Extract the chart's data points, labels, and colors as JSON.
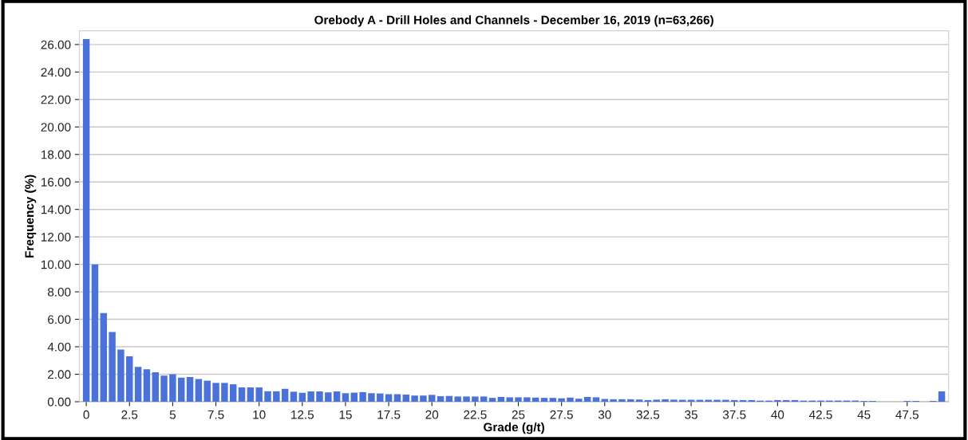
{
  "chart_data": {
    "type": "bar",
    "title": "Orebody A - Drill Holes and Channels - December 16, 2019 (n=63,266)",
    "xlabel": "Grade (g/t)",
    "ylabel": "Frequency (%)",
    "categories": [
      "0",
      null,
      null,
      null,
      null,
      "2.5",
      null,
      null,
      null,
      null,
      "5",
      null,
      null,
      null,
      null,
      "7.5",
      null,
      null,
      null,
      null,
      "10",
      null,
      null,
      null,
      null,
      "12.5",
      null,
      null,
      null,
      null,
      "15",
      null,
      null,
      null,
      null,
      "17.5",
      null,
      null,
      null,
      null,
      "20",
      null,
      null,
      null,
      null,
      "22.5",
      null,
      null,
      null,
      null,
      "25",
      null,
      null,
      null,
      null,
      "27.5",
      null,
      null,
      null,
      null,
      "30",
      null,
      null,
      null,
      null,
      "32.5",
      null,
      null,
      null,
      null,
      "35",
      null,
      null,
      null,
      null,
      "37.5",
      null,
      null,
      null,
      null,
      "40",
      null,
      null,
      null,
      null,
      "42.5",
      null,
      null,
      null,
      null,
      "45",
      null,
      null,
      null,
      null,
      "47.5",
      null,
      null,
      null,
      null
    ],
    "values": [
      26.4,
      10.0,
      6.45,
      5.08,
      3.8,
      3.31,
      2.53,
      2.37,
      2.14,
      1.9,
      2.0,
      1.75,
      1.8,
      1.65,
      1.53,
      1.37,
      1.37,
      1.27,
      1.04,
      1.04,
      1.04,
      0.76,
      0.76,
      0.94,
      0.73,
      0.65,
      0.75,
      0.75,
      0.68,
      0.75,
      0.62,
      0.66,
      0.7,
      0.62,
      0.6,
      0.55,
      0.55,
      0.52,
      0.45,
      0.45,
      0.5,
      0.4,
      0.42,
      0.38,
      0.38,
      0.38,
      0.38,
      0.28,
      0.35,
      0.32,
      0.32,
      0.32,
      0.3,
      0.28,
      0.28,
      0.25,
      0.3,
      0.22,
      0.35,
      0.32,
      0.2,
      0.18,
      0.18,
      0.18,
      0.16,
      0.12,
      0.15,
      0.18,
      0.15,
      0.14,
      0.14,
      0.14,
      0.14,
      0.14,
      0.14,
      0.12,
      0.12,
      0.12,
      0.08,
      0.08,
      0.12,
      0.12,
      0.12,
      0.08,
      0.08,
      0.08,
      0.08,
      0.08,
      0.08,
      0.08,
      0.06,
      0.06,
      null,
      null,
      null,
      0.06,
      0.06,
      null,
      0.06,
      0.75
    ],
    "color": "#4a72d8",
    "ylim": [
      0,
      27
    ],
    "yticks": [
      {
        "value": 0,
        "label": "0.00"
      },
      {
        "value": 2,
        "label": "2.00"
      },
      {
        "value": 4,
        "label": "4.00"
      },
      {
        "value": 6,
        "label": "6.00"
      },
      {
        "value": 8,
        "label": "8.00"
      },
      {
        "value": 10,
        "label": "10.00"
      },
      {
        "value": 12,
        "label": "12.00"
      },
      {
        "value": 14,
        "label": "14.00"
      },
      {
        "value": 16,
        "label": "16.00"
      },
      {
        "value": 18,
        "label": "18.00"
      },
      {
        "value": 20,
        "label": "20.00"
      },
      {
        "value": 22,
        "label": "22.00"
      },
      {
        "value": 24,
        "label": "24.00"
      },
      {
        "value": 26,
        "label": "26.00"
      }
    ],
    "grid": "y"
  }
}
